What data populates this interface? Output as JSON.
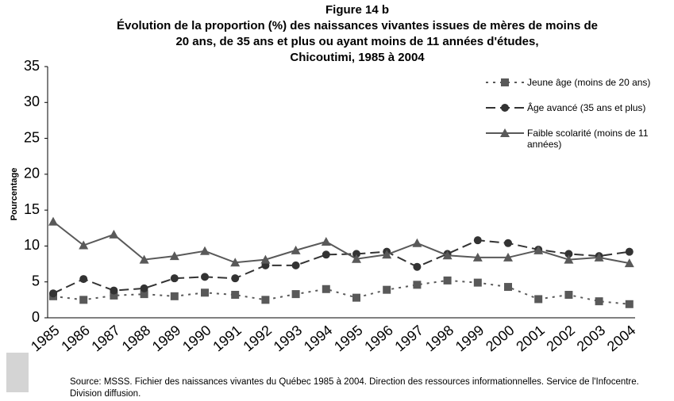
{
  "chart_data": {
    "type": "line",
    "title": [
      "Figure 14 b",
      "Évolution de la proportion (%) des naissances vivantes issues de mères de moins de",
      "20 ans, de 35 ans et plus ou ayant moins de 11 années d'études,",
      "Chicoutimi, 1985 à 2004"
    ],
    "y_label": "Pourcentage",
    "source": "Source: MSSS. Fichier des naissances vivantes du Québec 1985 à 2004. Direction des ressources informationnelles. Service de l'Infocentre. Division diffusion.",
    "categories": [
      "1985",
      "1986",
      "1987",
      "1988",
      "1989",
      "1990",
      "1991",
      "1992",
      "1993",
      "1994",
      "1995",
      "1996",
      "1997",
      "1998",
      "1999",
      "2000",
      "2001",
      "2002",
      "2003",
      "2004"
    ],
    "series": [
      {
        "name": "Jeune âge (moins de 20 ans)",
        "color": "#595959",
        "marker": "square",
        "dash": "3 6",
        "values": [
          3.0,
          2.5,
          3.1,
          3.3,
          3.0,
          3.5,
          3.2,
          2.5,
          3.3,
          4.0,
          2.8,
          3.9,
          4.6,
          5.2,
          4.9,
          4.3,
          2.6,
          3.2,
          2.3,
          1.9
        ]
      },
      {
        "name": "Âge avancé (35 ans et plus)",
        "color": "#333333",
        "marker": "circle",
        "dash": "12 6",
        "values": [
          3.4,
          5.4,
          3.8,
          4.1,
          5.5,
          5.7,
          5.5,
          7.3,
          7.3,
          8.8,
          8.9,
          9.2,
          7.1,
          8.9,
          10.8,
          10.4,
          9.5,
          8.9,
          8.6,
          9.2
        ]
      },
      {
        "name": "Faible scolarité (moins  de 11 années)",
        "color": "#595959",
        "marker": "triangle",
        "dash": "none",
        "values": [
          13.4,
          10.1,
          11.6,
          8.1,
          8.6,
          9.3,
          7.7,
          8.1,
          9.4,
          10.6,
          8.2,
          8.8,
          10.4,
          8.7,
          8.4,
          8.4,
          9.4,
          8.1,
          8.4,
          7.6
        ]
      }
    ],
    "ylim": [
      0,
      35
    ],
    "yticks": [
      0,
      5,
      10,
      15,
      20,
      25,
      30,
      35
    ],
    "grid": false
  }
}
